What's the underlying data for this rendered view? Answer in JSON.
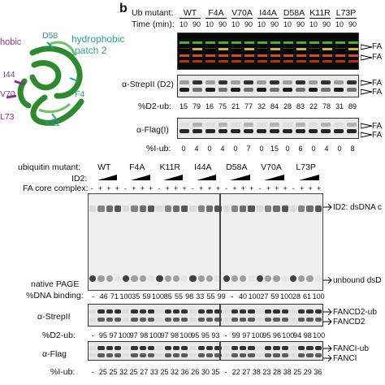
{
  "panel_b": {
    "label": "b",
    "ub_mutant_label": "Ub mutant:",
    "mutants": [
      "WT",
      "F4A",
      "V70A",
      "I44A",
      "D58A",
      "K11R",
      "L73P"
    ],
    "time_label": "Time (min):",
    "times": [
      "10",
      "90",
      "10",
      "90",
      "10",
      "90",
      "10",
      "90",
      "10",
      "90",
      "10",
      "90",
      "10",
      "90"
    ],
    "fa_labels": [
      "FA",
      "FA"
    ],
    "strep_label": "α-StrepII (D2)",
    "strep_right": [
      "FA",
      "FA"
    ],
    "d2_ub_label": "%D2-ub:",
    "d2_ub_values": [
      "15",
      "79",
      "16",
      "75",
      "21",
      "77",
      "32",
      "84",
      "28",
      "83",
      "22",
      "78",
      "31",
      "89"
    ],
    "flag_label": "α-Flag(I)",
    "flag_right": [
      "FA",
      "FA"
    ],
    "i_ub_label": "%I-ub:",
    "i_ub_values": [
      "0",
      "4",
      "0",
      "4",
      "0",
      "7",
      "0",
      "15",
      "0",
      "6",
      "0",
      "4",
      "0",
      "8"
    ]
  },
  "structure": {
    "labels": {
      "hydrophobic1": "hobic",
      "hydrophobic2_line1": "hydrophobic",
      "hydrophobic2_line2": "patch 2",
      "d58": "D58",
      "i44": "I44",
      "v70": "V70",
      "f4": "F4",
      "k11": "K11",
      "l73": "L73"
    }
  },
  "panel_c": {
    "ubiquitin_label": "ubiquitin mutant:",
    "mutants": [
      "WT",
      "F4A",
      "K11R",
      "I44A",
      "D58A",
      "V70A",
      "L73P"
    ],
    "id2_label": "ID2:",
    "fa_core_label": "FA core complex:",
    "fa_core_signs": [
      "-",
      "+",
      "+",
      "+",
      "-",
      "+",
      "+",
      "+",
      "-",
      "+",
      "+",
      "+",
      "-",
      "+",
      "+",
      "+",
      "-",
      "+",
      "+",
      "+",
      "-",
      "+",
      "+",
      "+",
      "-",
      "+",
      "+",
      "+"
    ],
    "id2_dsdna_label": "ID2: dsDNA c",
    "unbound_label": "unbound dsD",
    "native_page_label": "native PAGE",
    "dna_binding_label": "%DNA binding:",
    "dna_binding_values": [
      "-",
      "46",
      "71",
      "100",
      "35",
      "59",
      "100",
      "85",
      "55",
      "98",
      "33",
      "55",
      "99",
      "-",
      "40",
      "100",
      "27",
      "59",
      "100",
      "28",
      "61",
      "100"
    ],
    "strep_label": "α-StrepII",
    "strep_right": [
      "FANCD2-ub",
      "FANCD2"
    ],
    "d2_ub_label": "%D2-ub:",
    "d2_ub_values": [
      "-",
      "95",
      "97",
      "100",
      "97",
      "98",
      "100",
      "97",
      "98",
      "100",
      "95",
      "95",
      "93",
      "-",
      "99",
      "97",
      "100",
      "95",
      "96",
      "100",
      "94",
      "98",
      "100"
    ],
    "flag_label": "α-Flag",
    "flag_right": [
      "FANCI-ub",
      "FANCI"
    ],
    "i_ub_label": "%I-ub:",
    "i_ub_values": [
      "-",
      "25",
      "25",
      "32",
      "25",
      "27",
      "33",
      "25",
      "32",
      "36",
      "26",
      "30",
      "35",
      "-",
      "22",
      "27",
      "38",
      "23",
      "28",
      "38",
      "25",
      "29",
      "36"
    ]
  }
}
